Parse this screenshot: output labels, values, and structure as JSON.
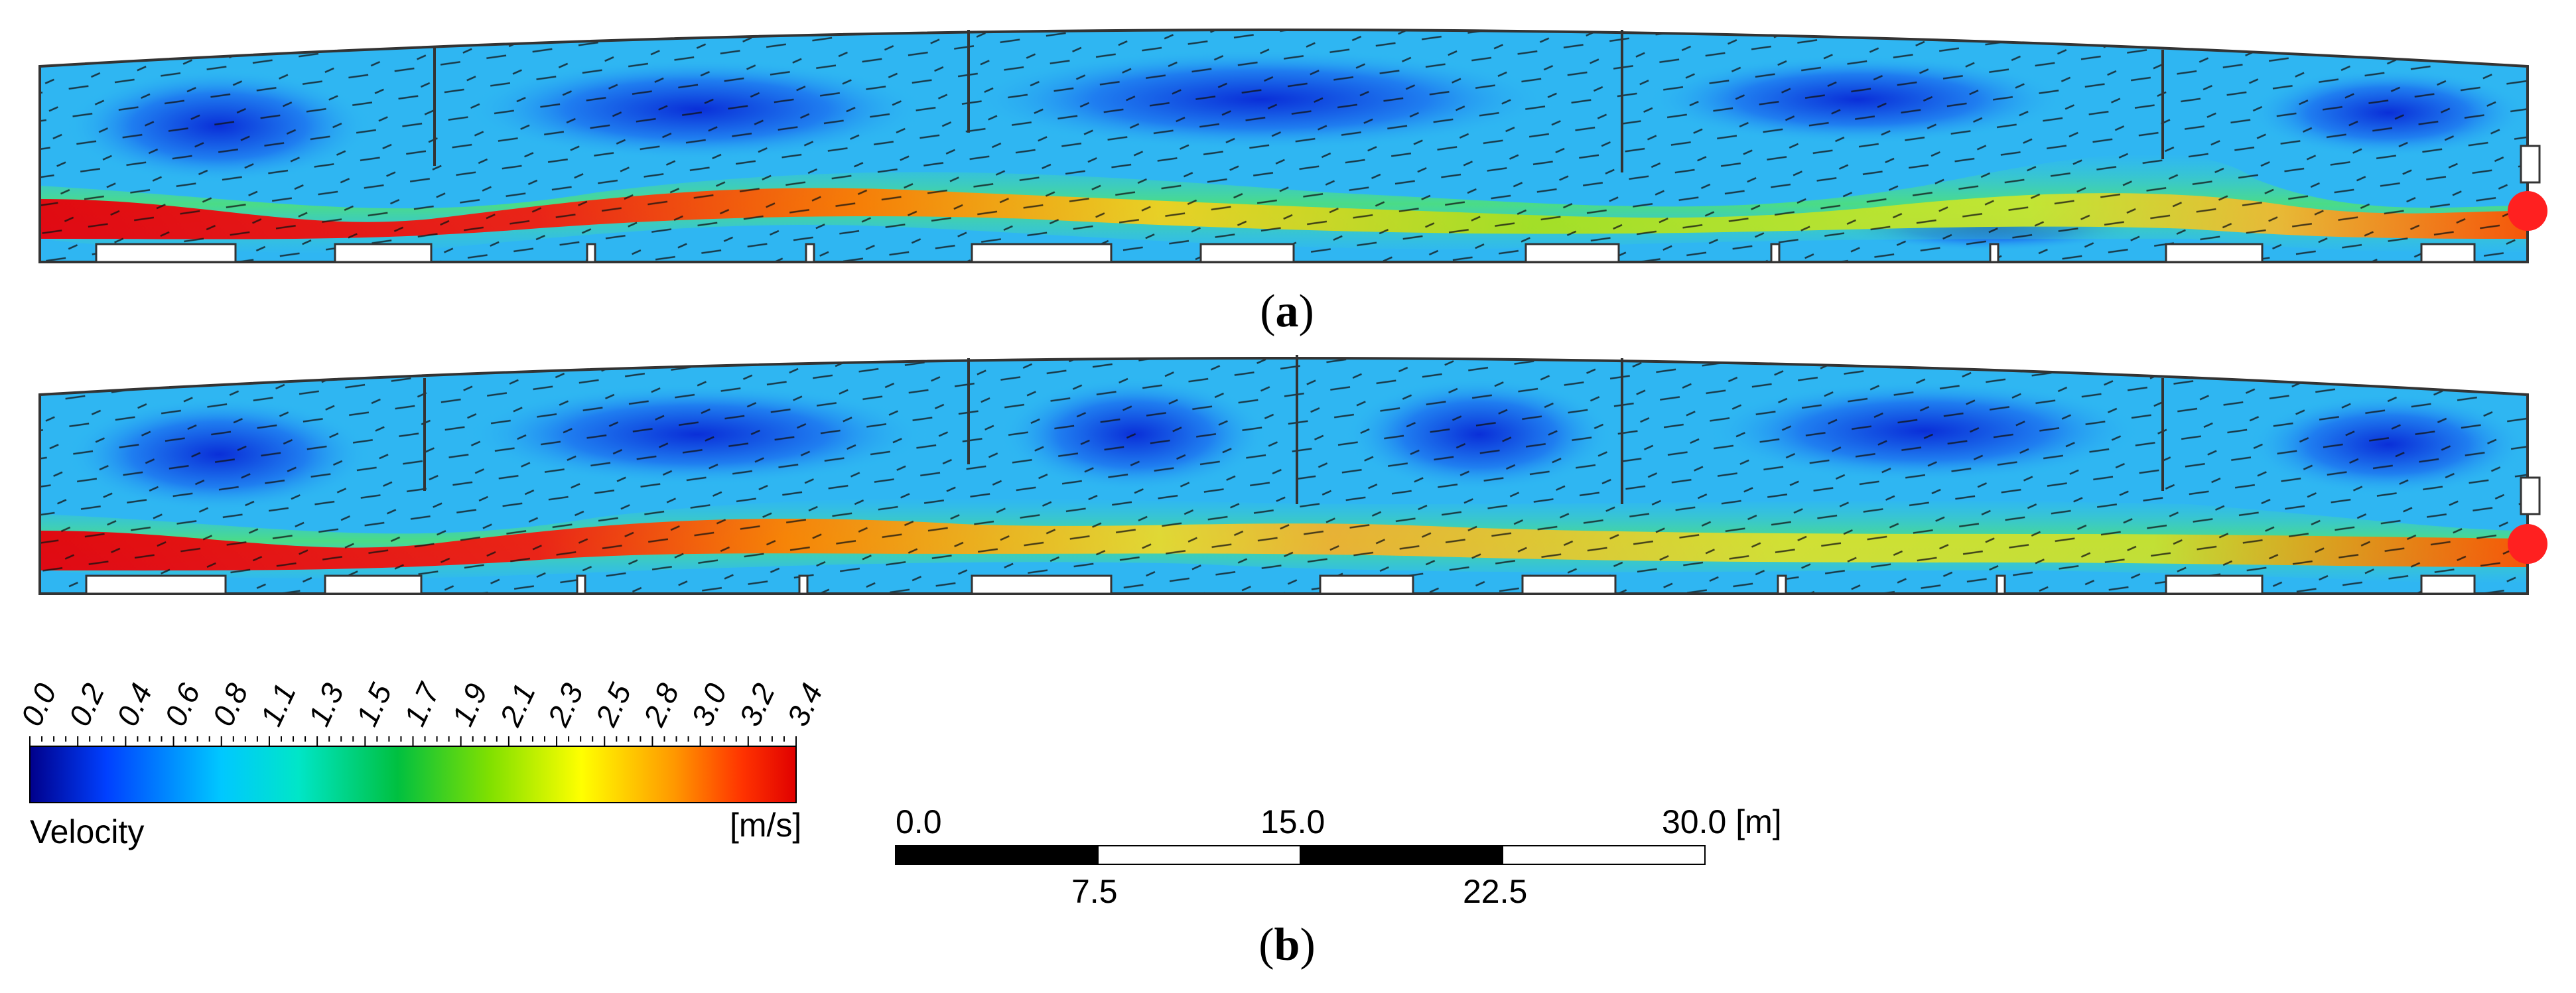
{
  "figure": {
    "panels": [
      {
        "id": "a",
        "label": "a"
      },
      {
        "id": "b",
        "label": "b"
      }
    ]
  },
  "legend": {
    "title": "Velocity",
    "unit": "[m/s]",
    "tick_labels": [
      "0.0",
      "0.2",
      "0.4",
      "0.6",
      "0.8",
      "1.1",
      "1.3",
      "1.5",
      "1.7",
      "1.9",
      "2.1",
      "2.3",
      "2.5",
      "2.8",
      "3.0",
      "3.2",
      "3.4"
    ],
    "range": [
      0.0,
      3.4
    ],
    "colormap": [
      "#00008b",
      "#0040ff",
      "#00c8ff",
      "#00e6c8",
      "#00c040",
      "#80e000",
      "#ffff00",
      "#ff9900",
      "#ff3300",
      "#e00000"
    ]
  },
  "scale_bar": {
    "top_labels": [
      "0.0",
      "15.0",
      "30.0 [m]"
    ],
    "bottom_labels": [
      "7.5",
      "22.5"
    ],
    "unit": "m"
  }
}
